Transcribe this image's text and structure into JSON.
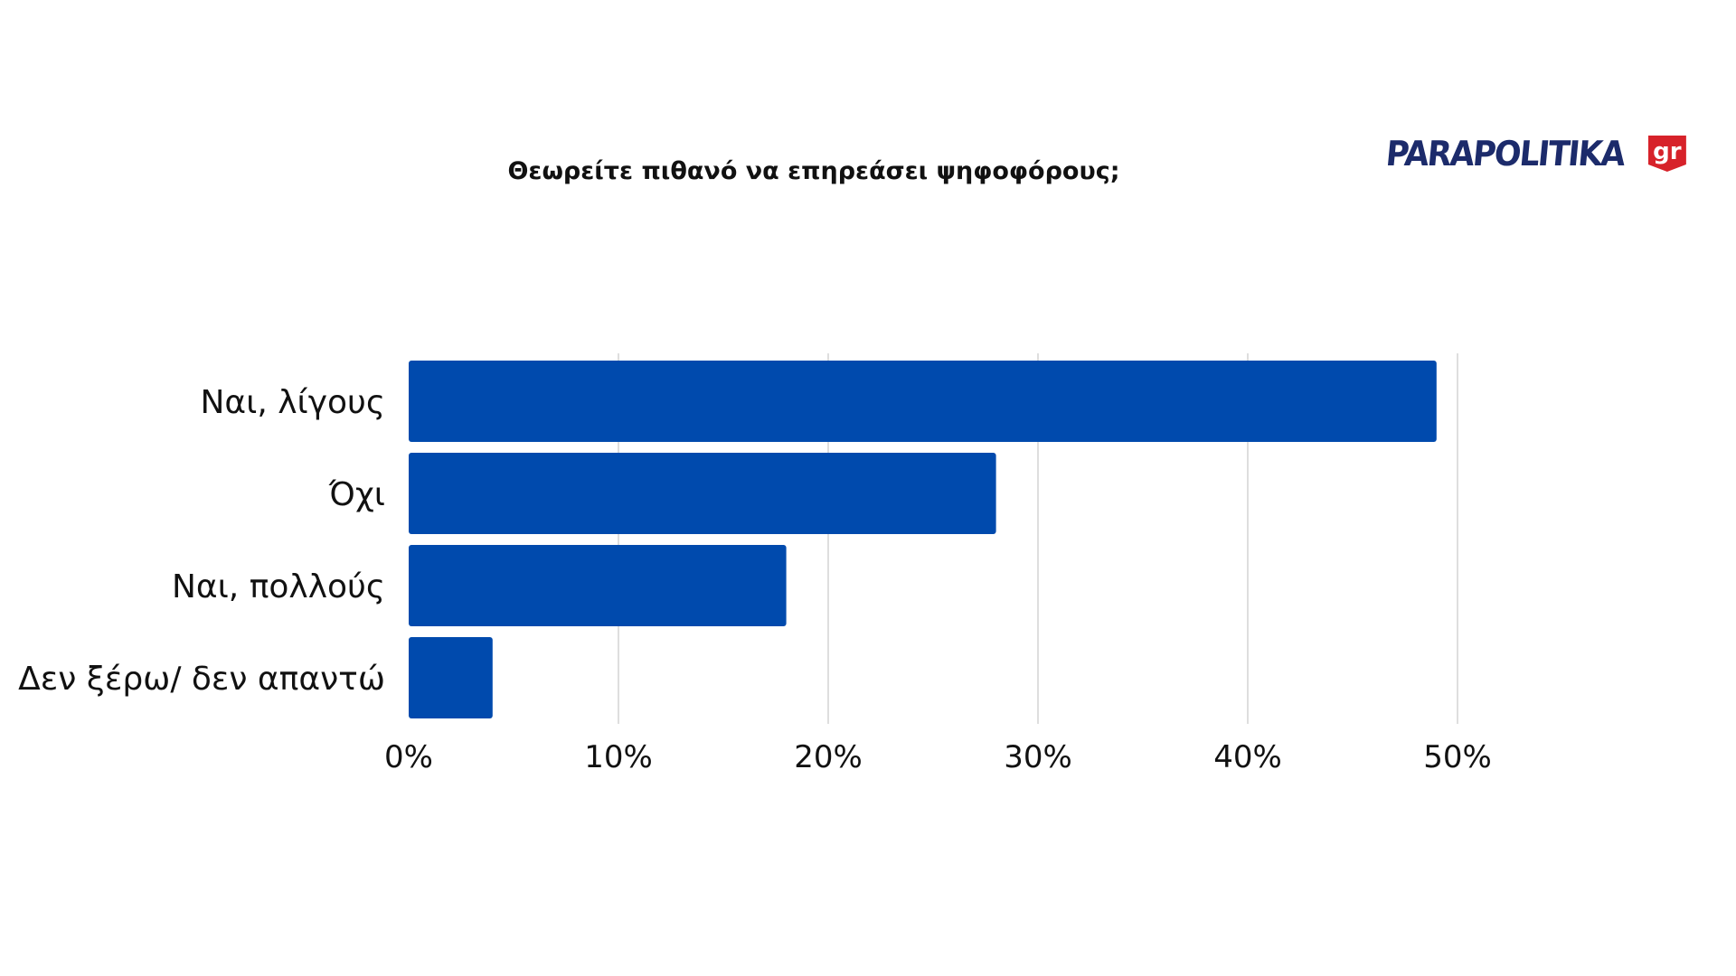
{
  "logo": {
    "wordmark": "PARAPOLITIKA",
    "badge": "gr",
    "colors": {
      "wordmark": "#1c2b6b",
      "badge": "#d7222a"
    }
  },
  "chart_data": {
    "type": "bar",
    "orientation": "horizontal",
    "title": "Θεωρείτε πιθανό να επηρεάσει ψηφοφόρους;",
    "categories": [
      "Ναι, λίγους",
      "Όχι",
      "Ναι, πολλούς",
      "Δεν ξέρω/ δεν απαντώ"
    ],
    "values": [
      49,
      28,
      18,
      4
    ],
    "unit": "%",
    "xlim": [
      0,
      50
    ],
    "ticks": [
      0,
      10,
      20,
      30,
      40,
      50
    ],
    "tick_labels": [
      "0%",
      "10%",
      "20%",
      "30%",
      "40%",
      "50%"
    ],
    "grid": true,
    "legend": "none",
    "colors": {
      "bar": "#004aad",
      "grid": "#d4d4d4",
      "text": "#111111"
    }
  }
}
